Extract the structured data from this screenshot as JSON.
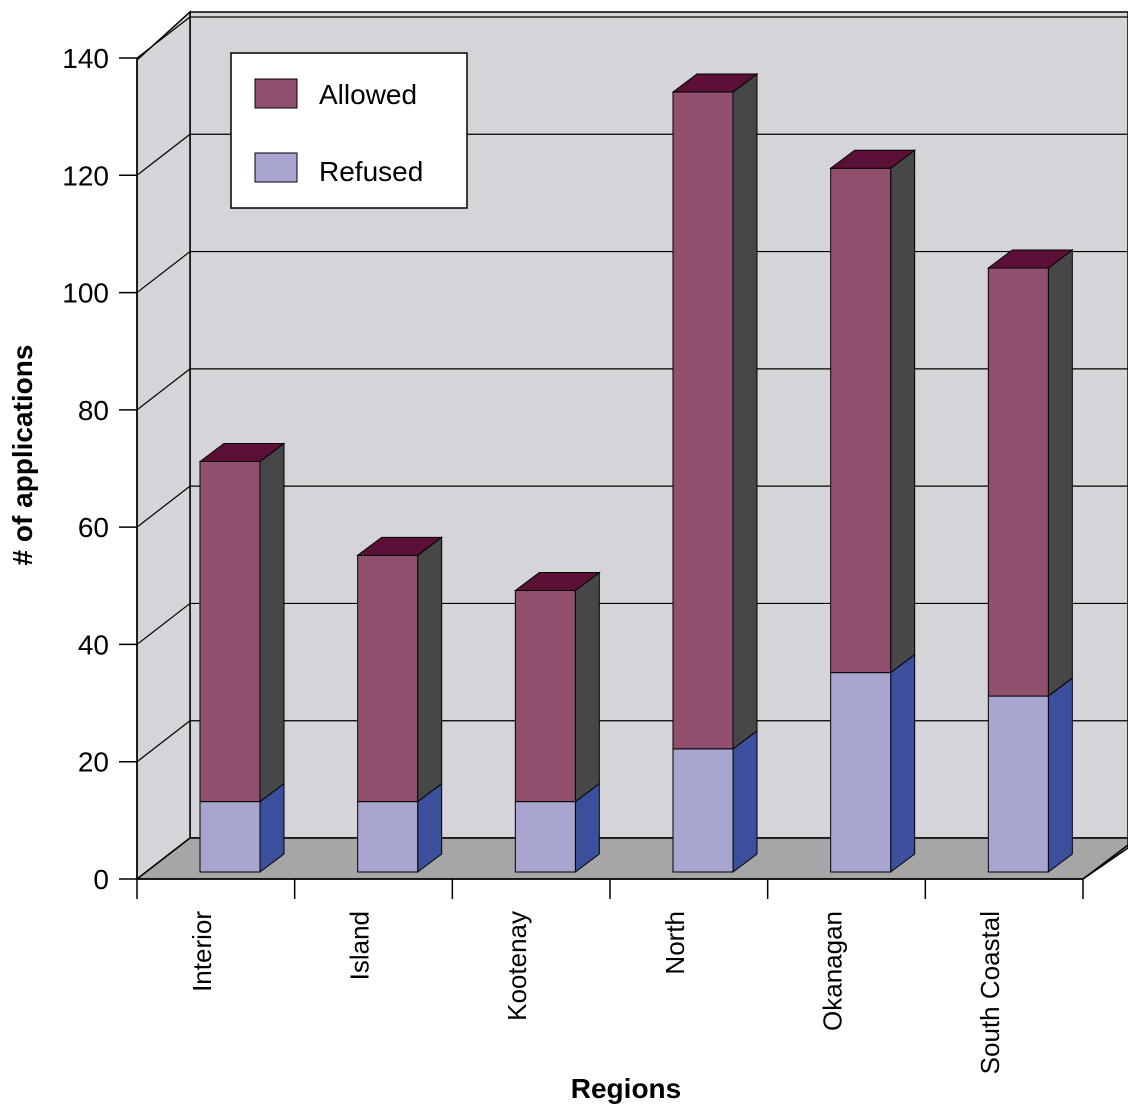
{
  "chart_data": {
    "type": "bar",
    "stacked": true,
    "three_d": true,
    "title": "",
    "xlabel": "Regions",
    "ylabel": "# of applications",
    "categories": [
      "Interior",
      "Island",
      "Kootenay",
      "North",
      "Okanagan",
      "South Coastal"
    ],
    "series": [
      {
        "name": "Refused",
        "values": [
          12,
          12,
          12,
          21,
          34,
          30
        ]
      },
      {
        "name": "Allowed",
        "values": [
          58,
          42,
          36,
          112,
          86,
          73
        ]
      }
    ],
    "ylim": [
      0,
      140
    ],
    "yticks": [
      0,
      20,
      40,
      60,
      80,
      100,
      120,
      140
    ],
    "grid": true,
    "legend_position": "top-left",
    "colors": {
      "wall": "#d4d4d9",
      "floor": "#a6a6a6",
      "allowed_front": "#914f6e",
      "allowed_side": "#474747",
      "allowed_top": "#5c1038",
      "refused_front": "#a8a6d1",
      "refused_side": "#3c4f9c",
      "refused_top": "#a8a6d1"
    }
  }
}
